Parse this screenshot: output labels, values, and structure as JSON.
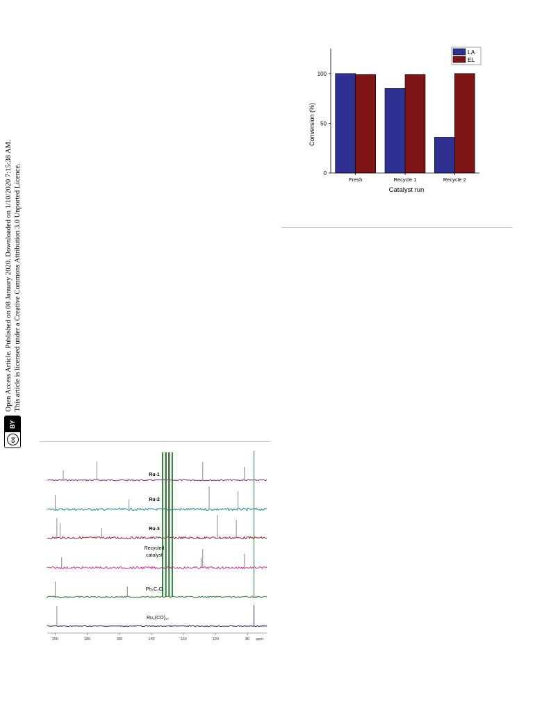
{
  "side_notice": {
    "line1": "Open Access Article. Published on 08 January 2020. Downloaded on 1/10/2020 7:15:38 AM.",
    "line2": "This article is licensed under a Creative Commons Attribution 3.0 Unported Licence.",
    "badge_cc": "cc",
    "badge_by": "BY"
  },
  "chart_data": [
    {
      "type": "bar",
      "categories": [
        "Fresh",
        "Recycle 1",
        "Recycle 2"
      ],
      "series": [
        {
          "name": "LA",
          "values": [
            100,
            85,
            36
          ],
          "color": "#2e3192"
        },
        {
          "name": "EL",
          "values": [
            99,
            99,
            100
          ],
          "color": "#7d1416"
        }
      ],
      "xlabel": "Catalyst run",
      "ylabel": "Conversion (%)",
      "ylim": [
        0,
        125
      ],
      "yticks": [
        0,
        50,
        100
      ],
      "legend": "top-right"
    },
    {
      "type": "line",
      "xlabel": "ppm",
      "xticks": [
        200,
        180,
        160,
        140,
        120,
        100,
        80
      ],
      "xlim": [
        205,
        68
      ],
      "series": [
        {
          "name": "Ru-1",
          "color": "#7a2f7a",
          "peaks": [
            195,
            174,
            131,
            129,
            108,
            82
          ]
        },
        {
          "name": "Ru-2",
          "color": "#1f8b8b",
          "peaks": [
            200,
            154,
            131,
            129,
            104,
            86
          ]
        },
        {
          "name": "Ru-3",
          "color": "#a3232c",
          "peaks": [
            199,
            197,
            171,
            131,
            129,
            99,
            87
          ]
        },
        {
          "name": "Recycled catalyst",
          "color": "#d6338f",
          "peaks": [
            196,
            131,
            129,
            109,
            108,
            82
          ]
        },
        {
          "name": "Ph₂C₂O",
          "color": "#2f7d3a",
          "peaks": [
            200,
            155,
            133,
            131,
            129,
            127,
            76
          ]
        },
        {
          "name": "Ru₃(CO)₁₂",
          "color": "#2b2a6e",
          "peaks": [
            199,
            76
          ]
        }
      ]
    }
  ]
}
